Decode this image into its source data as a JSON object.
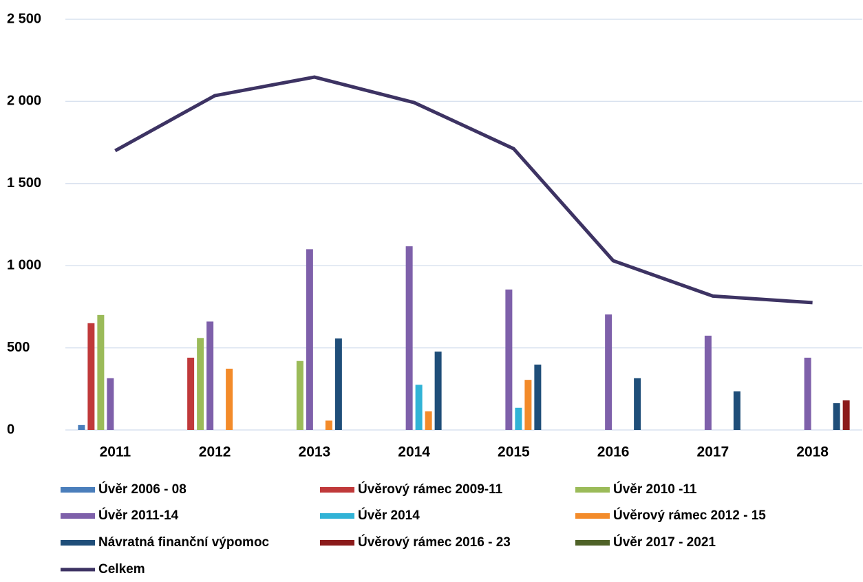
{
  "chart_data": {
    "type": "bar",
    "categories": [
      "2011",
      "2012",
      "2013",
      "2014",
      "2015",
      "2016",
      "2017",
      "2018"
    ],
    "series": [
      {
        "name": "Úvěr 2006 - 08",
        "color": "#4a7ebb",
        "values": [
          30,
          null,
          null,
          null,
          null,
          null,
          null,
          null
        ]
      },
      {
        "name": "Úvěrový rámec 2009-11",
        "color": "#c0393a",
        "values": [
          650,
          440,
          null,
          null,
          null,
          null,
          null,
          null
        ]
      },
      {
        "name": "Úvěr 2010 -11",
        "color": "#9bbb59",
        "values": [
          700,
          560,
          420,
          null,
          null,
          null,
          null,
          null
        ]
      },
      {
        "name": "Úvěr 2011-14",
        "color": "#7e60aa",
        "values": [
          315,
          660,
          1100,
          1118,
          855,
          703,
          574,
          440
        ]
      },
      {
        "name": "Úvěr 2014",
        "color": "#31b3d6",
        "values": [
          null,
          null,
          null,
          275,
          135,
          null,
          null,
          null
        ]
      },
      {
        "name": "Úvěrový rámec  2012 - 15",
        "color": "#f38b2a",
        "values": [
          null,
          373,
          57,
          113,
          305,
          null,
          null,
          null
        ]
      },
      {
        "name": "Návratná finanční výpomoc",
        "color": "#1f4e79",
        "values": [
          null,
          null,
          557,
          477,
          398,
          315,
          235,
          163
        ]
      },
      {
        "name": "Úvěrový rámec  2016 - 23",
        "color": "#8b1a1a",
        "values": [
          null,
          null,
          null,
          null,
          null,
          null,
          null,
          180
        ]
      },
      {
        "name": "Úvěr 2017 - 2021",
        "color": "#4f6228",
        "values": [
          null,
          null,
          null,
          null,
          null,
          null,
          null,
          null
        ]
      },
      {
        "name": "Celkem",
        "type": "line",
        "color": "#3d3363",
        "values": [
          1700,
          2035,
          2148,
          1993,
          1712,
          1030,
          815,
          775
        ]
      }
    ],
    "ylim": [
      0,
      2500
    ],
    "yticks": [
      0,
      500,
      {
        "value": 1000,
        "label": "1 000"
      },
      {
        "value": 1500,
        "label": "1 500"
      },
      {
        "value": 2000,
        "label": "2 000"
      },
      {
        "value": 2500,
        "label": "2 500"
      }
    ],
    "grid": true,
    "legend": "bottom"
  }
}
